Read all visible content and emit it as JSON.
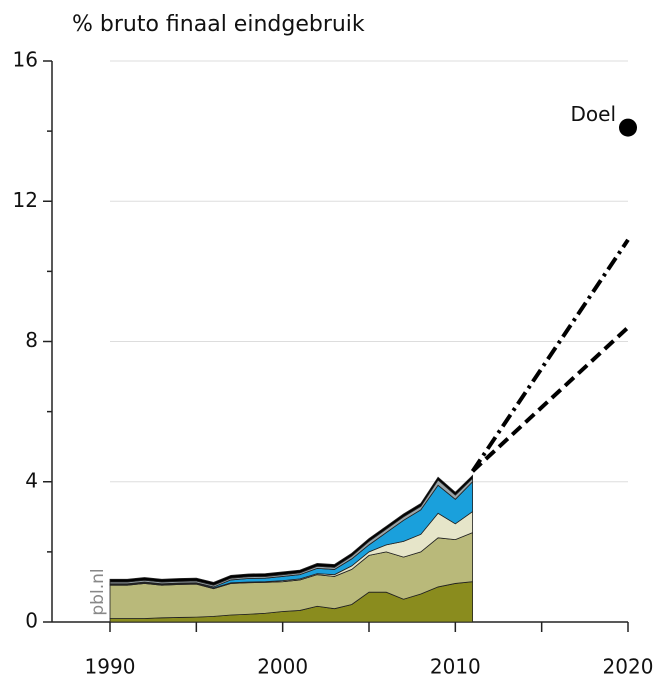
{
  "chart_data": {
    "type": "stacked-area",
    "title": "% bruto finaal eindgebruik",
    "watermark": "pbl.nl",
    "x": [
      1990,
      1991,
      1992,
      1993,
      1994,
      1995,
      1996,
      1997,
      1998,
      1999,
      2000,
      2001,
      2002,
      2003,
      2004,
      2005,
      2006,
      2007,
      2008,
      2009,
      2010,
      2011
    ],
    "series": [
      {
        "color": "#8a8c1e",
        "values": [
          0.1,
          0.1,
          0.1,
          0.12,
          0.13,
          0.14,
          0.16,
          0.2,
          0.22,
          0.25,
          0.3,
          0.33,
          0.45,
          0.38,
          0.5,
          0.85,
          0.85,
          0.65,
          0.8,
          1.0,
          1.1,
          1.15
        ]
      },
      {
        "color": "#b9b97a",
        "values": [
          0.95,
          0.95,
          1.0,
          0.93,
          0.94,
          0.94,
          0.79,
          0.9,
          0.9,
          0.88,
          0.85,
          0.87,
          0.9,
          0.92,
          1.0,
          1.05,
          1.15,
          1.2,
          1.2,
          1.4,
          1.25,
          1.4
        ]
      },
      {
        "color": "#e6e5c9",
        "values": [
          0.02,
          0.02,
          0.02,
          0.02,
          0.02,
          0.02,
          0.02,
          0.02,
          0.02,
          0.02,
          0.03,
          0.03,
          0.03,
          0.05,
          0.1,
          0.1,
          0.2,
          0.45,
          0.5,
          0.7,
          0.45,
          0.6
        ]
      },
      {
        "color": "#1aa0dc",
        "values": [
          0.02,
          0.02,
          0.02,
          0.02,
          0.02,
          0.02,
          0.03,
          0.08,
          0.1,
          0.1,
          0.12,
          0.12,
          0.15,
          0.15,
          0.2,
          0.2,
          0.35,
          0.6,
          0.7,
          0.8,
          0.7,
          0.85
        ]
      },
      {
        "color": "#9aa4a8",
        "values": [
          0.05,
          0.05,
          0.05,
          0.05,
          0.05,
          0.05,
          0.05,
          0.05,
          0.05,
          0.05,
          0.05,
          0.05,
          0.06,
          0.06,
          0.08,
          0.1,
          0.1,
          0.1,
          0.1,
          0.15,
          0.12,
          0.1
        ]
      },
      {
        "color": "#000000",
        "values": [
          0.08,
          0.08,
          0.08,
          0.08,
          0.08,
          0.08,
          0.08,
          0.08,
          0.08,
          0.08,
          0.08,
          0.08,
          0.08,
          0.08,
          0.08,
          0.08,
          0.08,
          0.08,
          0.08,
          0.08,
          0.08,
          0.08
        ]
      }
    ],
    "projections": [
      {
        "x": [
          2011,
          2020
        ],
        "values": [
          4.3,
          10.9
        ],
        "dash": "14 5 3 5"
      },
      {
        "x": [
          2011,
          2020
        ],
        "values": [
          4.3,
          8.4
        ],
        "dash": "12 6"
      }
    ],
    "annotations": [
      {
        "label": "Doel",
        "x": 2020,
        "value": 14.1
      }
    ],
    "xlim": [
      1990,
      2020
    ],
    "xticks": [
      1990,
      2000,
      2010,
      2020
    ],
    "xminorticks": [
      1995,
      2005,
      2015
    ],
    "ylim": [
      0,
      16
    ],
    "yticks": [
      0,
      4,
      8,
      12,
      16
    ],
    "yminorticks": [
      2,
      6,
      10,
      14
    ],
    "grid": true
  }
}
